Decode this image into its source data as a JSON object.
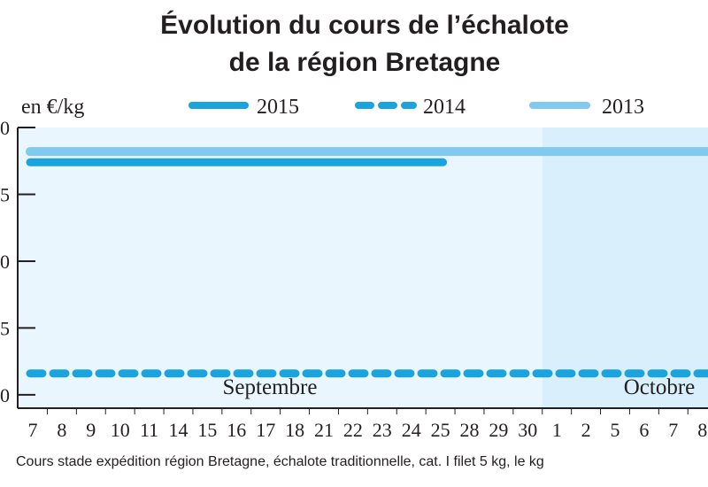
{
  "chart_data": {
    "type": "line",
    "title": "Évolution du cours de l’échalote",
    "subtitle": "de la région Bretagne",
    "ylabel": "en €/kg",
    "ylim": [
      0.95,
      2.0
    ],
    "y_tick_labels": [
      "0",
      "5",
      "0",
      "5",
      "0"
    ],
    "categories": [
      "7",
      "8",
      "9",
      "10",
      "11",
      "14",
      "15",
      "16",
      "17",
      "18",
      "21",
      "22",
      "23",
      "24",
      "25",
      "28",
      "29",
      "30",
      "1",
      "2",
      "5",
      "6",
      "7",
      "8"
    ],
    "months": [
      {
        "label": "Septembre",
        "start_index": 0,
        "end_index": 17
      },
      {
        "label": "Octobre",
        "start_index": 18,
        "end_index": 23
      }
    ],
    "series": [
      {
        "name": "2015",
        "style": "solid",
        "color": "#1aa3dc",
        "values": [
          1.87,
          1.87,
          1.87,
          1.87,
          1.87,
          1.87,
          1.87,
          1.87,
          1.87,
          1.87,
          1.87,
          1.87,
          1.87,
          1.87,
          1.87,
          null,
          null,
          null,
          null,
          null,
          null,
          null,
          null,
          null
        ]
      },
      {
        "name": "2014",
        "style": "dashed",
        "color": "#1aa3dc",
        "values": [
          1.08,
          1.08,
          1.08,
          1.08,
          1.08,
          1.08,
          1.08,
          1.08,
          1.08,
          1.08,
          1.08,
          1.08,
          1.08,
          1.08,
          1.08,
          1.08,
          1.08,
          1.08,
          1.08,
          1.08,
          1.08,
          1.08,
          1.08,
          1.08
        ]
      },
      {
        "name": "2013",
        "style": "solid",
        "color": "#7fcaee",
        "values": [
          1.91,
          1.91,
          1.91,
          1.91,
          1.91,
          1.91,
          1.91,
          1.91,
          1.91,
          1.91,
          1.91,
          1.91,
          1.91,
          1.91,
          1.91,
          1.91,
          1.91,
          1.91,
          1.91,
          1.91,
          1.91,
          1.91,
          1.91,
          1.91
        ]
      }
    ],
    "legend": "top",
    "grid": false,
    "source": "Cours stade expédition région Bretagne, échalote traditionnelle, cat. I filet 5 kg, le kg"
  }
}
